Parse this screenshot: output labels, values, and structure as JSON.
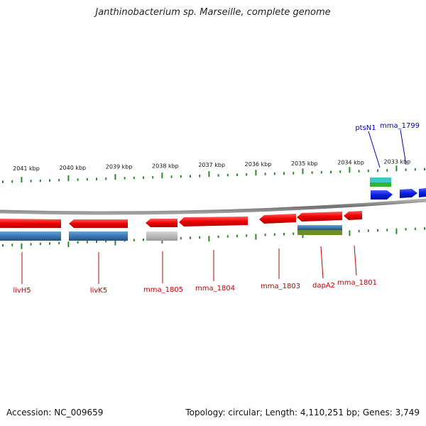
{
  "title": "Janthinobacterium sp. Marseille, complete genome",
  "ruler": {
    "labels": [
      "2041 kbp",
      "2040 kbp",
      "2039 kbp",
      "2038 kbp",
      "2037 kbp",
      "2036 kbp",
      "2035 kbp",
      "2034 kbp",
      "2033 kbp"
    ]
  },
  "genes": {
    "reverse": [
      {
        "label": "livH5",
        "color": "#e01010"
      },
      {
        "label": "livK5",
        "color": "#e01010"
      },
      {
        "label": "mma_1805",
        "color": "#e01010"
      },
      {
        "label": "mma_1804",
        "color": "#e01010"
      },
      {
        "label": "mma_1803",
        "color": "#e01010"
      },
      {
        "label": "dapA2",
        "color": "#e01010"
      },
      {
        "label": "mma_1801",
        "color": "#e01010"
      }
    ],
    "forward": [
      {
        "label": "ptsN1",
        "color": "#0a1ee0"
      },
      {
        "label": "mma_1799",
        "color": "#0a1ee0"
      }
    ]
  },
  "colors": {
    "reverse_label": "#c00000",
    "forward_label": "#0000c0",
    "tick": "#2a8a2a",
    "backbone": "#808080",
    "cog_blue": "#3c78b4",
    "cog_gray": "#b4b4b4",
    "cog_olive": "#6e8c28",
    "cog_cyan": "#3cc8c8",
    "cog_green": "#32b432"
  },
  "footer": {
    "accession": "Accession: NC_009659",
    "summary": "Topology: circular; Length: 4,110,251 bp; Genes: 3,749"
  }
}
